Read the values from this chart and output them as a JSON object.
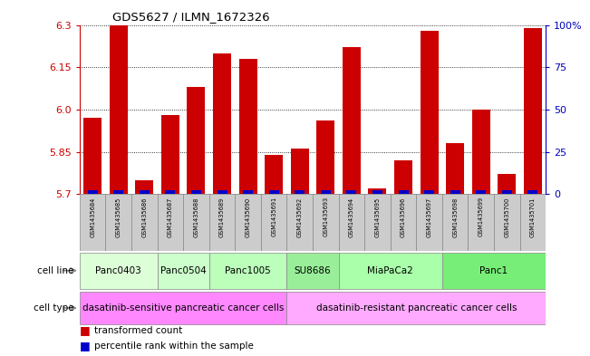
{
  "title": "GDS5627 / ILMN_1672326",
  "samples": [
    "GSM1435684",
    "GSM1435685",
    "GSM1435686",
    "GSM1435687",
    "GSM1435688",
    "GSM1435689",
    "GSM1435690",
    "GSM1435691",
    "GSM1435692",
    "GSM1435693",
    "GSM1435694",
    "GSM1435695",
    "GSM1435696",
    "GSM1435697",
    "GSM1435698",
    "GSM1435699",
    "GSM1435700",
    "GSM1435701"
  ],
  "red_values": [
    5.97,
    6.3,
    5.75,
    5.98,
    6.08,
    6.2,
    6.18,
    5.84,
    5.86,
    5.96,
    6.22,
    5.72,
    5.82,
    6.28,
    5.88,
    6.0,
    5.77,
    6.29
  ],
  "blue_values": [
    3,
    10,
    2,
    2,
    4,
    5,
    3,
    2,
    2,
    2,
    8,
    2,
    4,
    5,
    2,
    2,
    4,
    5
  ],
  "ymin": 5.7,
  "ymax": 6.3,
  "yticks": [
    5.7,
    5.85,
    6.0,
    6.15,
    6.3
  ],
  "right_yticks": [
    0,
    25,
    50,
    75,
    100
  ],
  "cell_lines": [
    {
      "label": "Panc0403",
      "start": 0,
      "end": 2,
      "color": "#ddffd8"
    },
    {
      "label": "Panc0504",
      "start": 3,
      "end": 4,
      "color": "#ccffcc"
    },
    {
      "label": "Panc1005",
      "start": 5,
      "end": 7,
      "color": "#bbffbb"
    },
    {
      "label": "SU8686",
      "start": 8,
      "end": 9,
      "color": "#99ee99"
    },
    {
      "label": "MiaPaCa2",
      "start": 10,
      "end": 13,
      "color": "#aaffaa"
    },
    {
      "label": "Panc1",
      "start": 14,
      "end": 17,
      "color": "#77ee77"
    }
  ],
  "cell_types": [
    {
      "label": "dasatinib-sensitive pancreatic cancer cells",
      "start": 0,
      "end": 7,
      "color": "#ff88ff"
    },
    {
      "label": "dasatinib-resistant pancreatic cancer cells",
      "start": 8,
      "end": 17,
      "color": "#ffaaff"
    }
  ],
  "bar_color_red": "#cc0000",
  "bar_color_blue": "#0000cc",
  "ylabel_color_left": "#cc0000",
  "ylabel_color_right": "#0000bb"
}
